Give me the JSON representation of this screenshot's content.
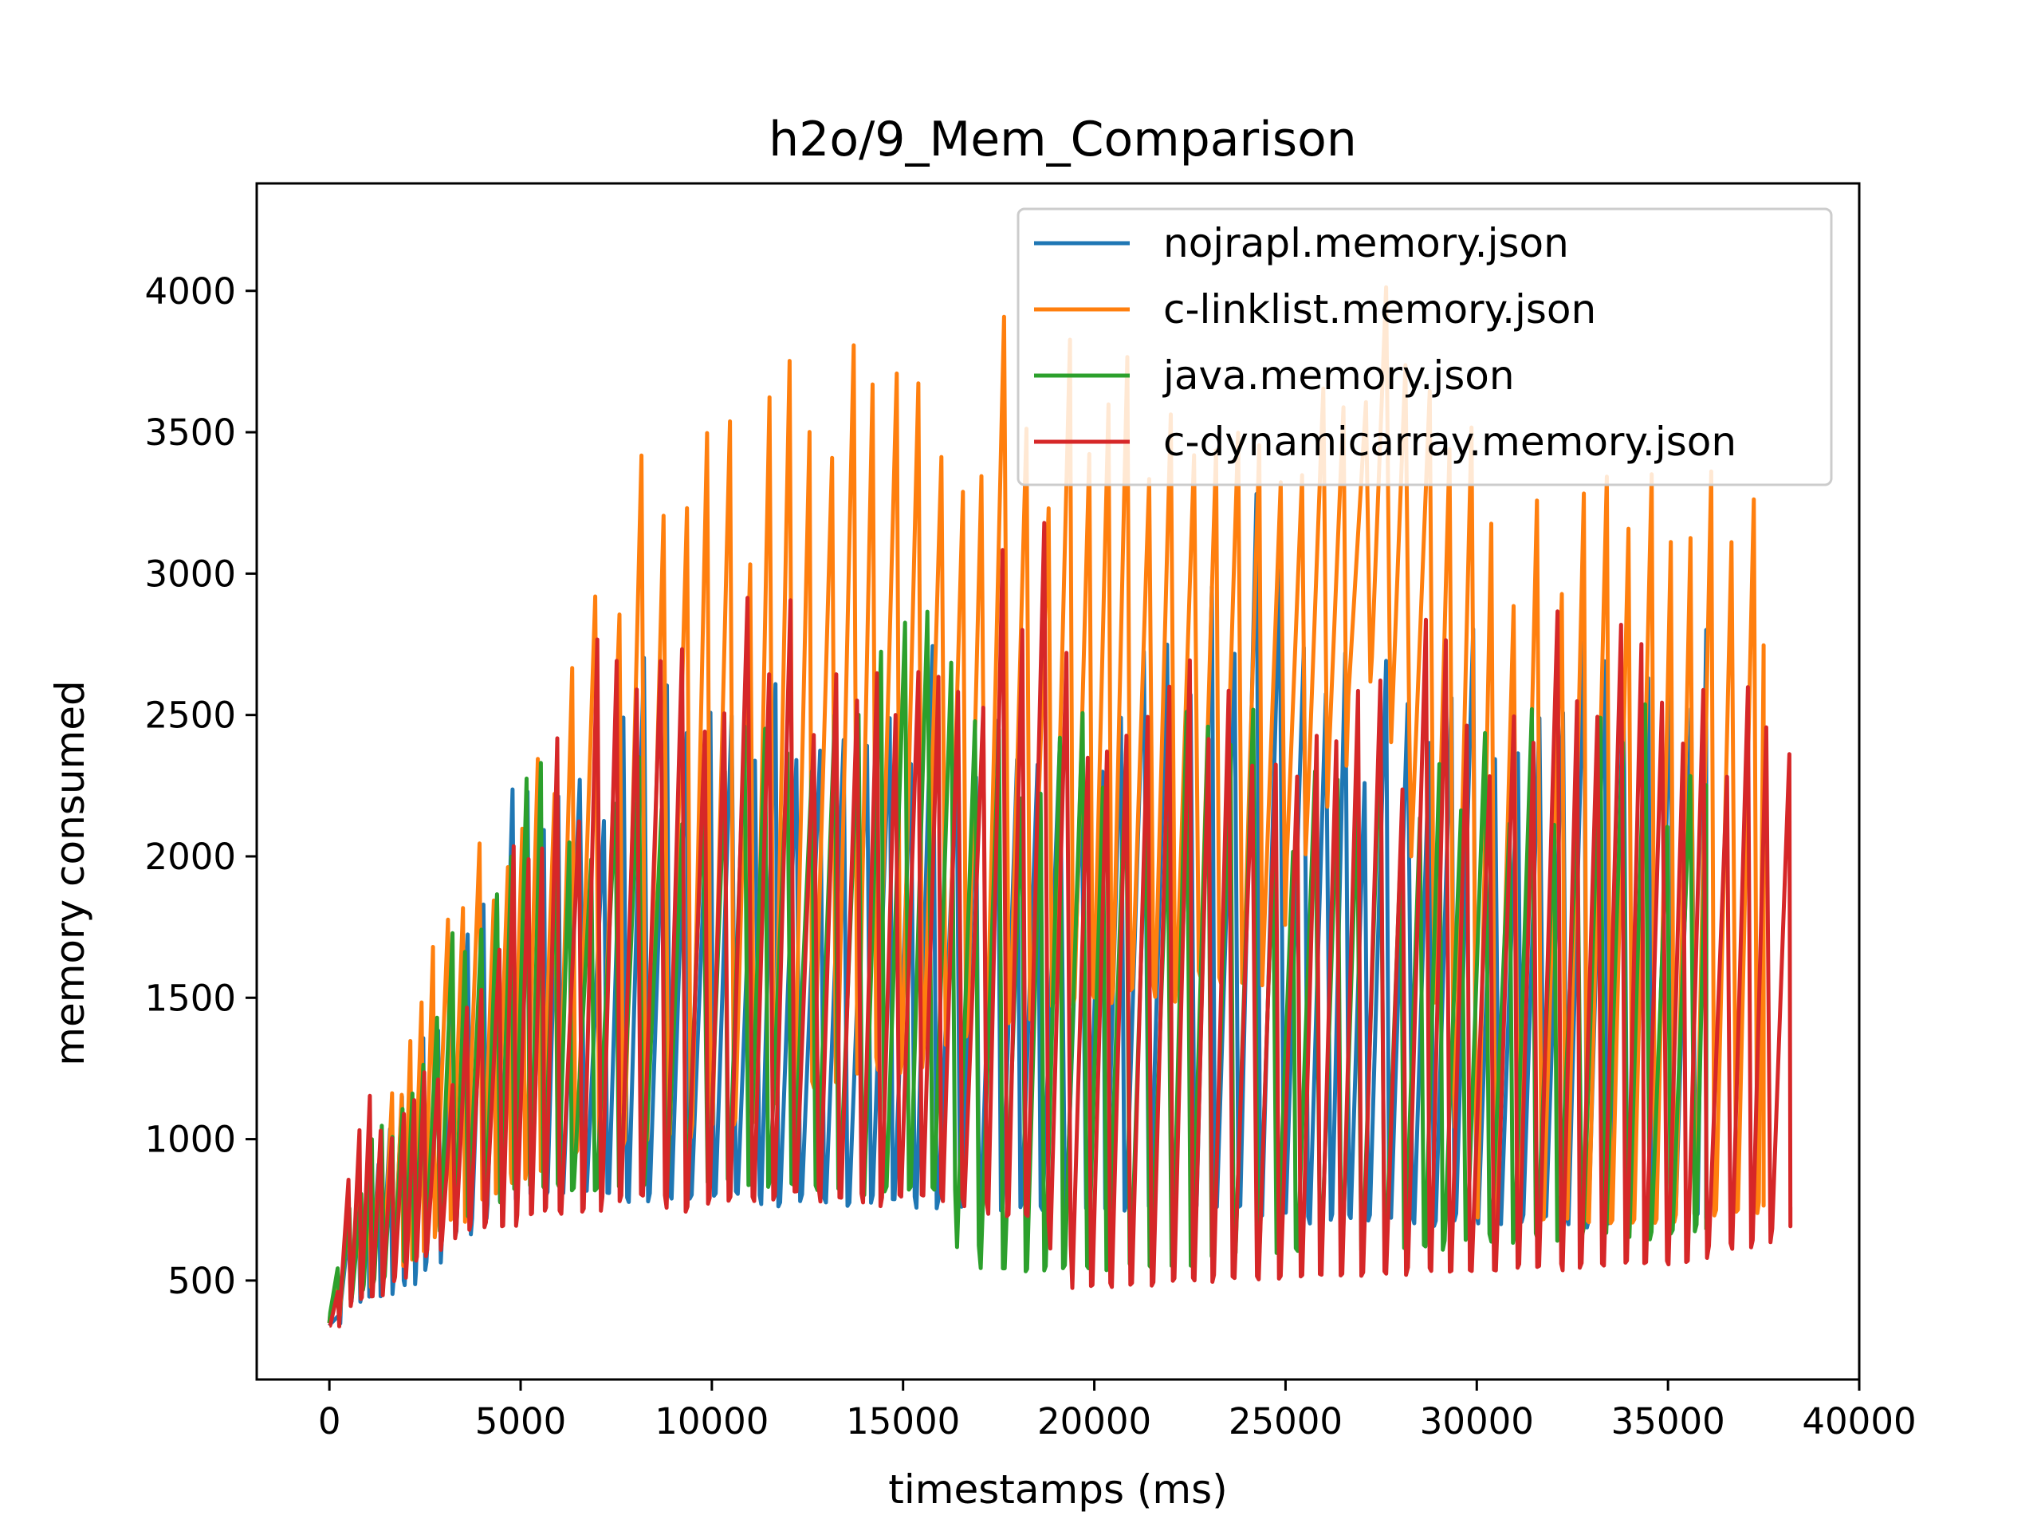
{
  "chart_data": {
    "type": "line",
    "title": "h2o/9_Mem_Comparison",
    "xlabel": "timestamps (ms)",
    "ylabel": "memory consumed",
    "xlim": [
      -1900,
      40000
    ],
    "ylim": [
      150,
      4380
    ],
    "xticks": [
      0,
      5000,
      10000,
      15000,
      20000,
      25000,
      30000,
      35000,
      40000
    ],
    "xtick_labels": [
      "0",
      "5000",
      "10000",
      "15000",
      "20000",
      "25000",
      "30000",
      "35000",
      "40000"
    ],
    "yticks": [
      500,
      1000,
      1500,
      2000,
      2500,
      3000,
      3500,
      4000
    ],
    "ytick_labels": [
      "500",
      "1000",
      "1500",
      "2000",
      "2500",
      "3000",
      "3500",
      "4000"
    ],
    "grid": false,
    "legend_position": "top-right",
    "series": [
      {
        "name": "nojrapl.memory.json",
        "color": "#1f77b4",
        "x_end": 36000,
        "envelope": [
          [
            0,
            350,
            380
          ],
          [
            300,
            420,
            700
          ],
          [
            1000,
            460,
            950
          ],
          [
            2000,
            500,
            1300
          ],
          [
            3000,
            650,
            1750
          ],
          [
            4000,
            750,
            2150
          ],
          [
            5000,
            820,
            2400
          ],
          [
            6000,
            820,
            2450
          ],
          [
            7000,
            820,
            2550
          ],
          [
            8000,
            790,
            2750
          ],
          [
            10000,
            790,
            2800
          ],
          [
            15000,
            780,
            2800
          ],
          [
            20000,
            760,
            2850
          ],
          [
            23500,
            760,
            3400
          ],
          [
            25000,
            720,
            2800
          ],
          [
            30000,
            720,
            2850
          ],
          [
            36000,
            720,
            2800
          ]
        ]
      },
      {
        "name": "c-linklist.memory.json",
        "color": "#ff7f0e",
        "x_end": 37500,
        "envelope": [
          [
            0,
            350,
            380
          ],
          [
            300,
            420,
            750
          ],
          [
            1000,
            470,
            1050
          ],
          [
            2000,
            580,
            1450
          ],
          [
            3000,
            700,
            1900
          ],
          [
            4000,
            800,
            2200
          ],
          [
            5000,
            880,
            2450
          ],
          [
            6000,
            930,
            2600
          ],
          [
            7000,
            980,
            3300
          ],
          [
            8000,
            1000,
            3500
          ],
          [
            10000,
            1050,
            3700
          ],
          [
            12000,
            1150,
            3800
          ],
          [
            15000,
            1300,
            3880
          ],
          [
            17500,
            1400,
            3920
          ],
          [
            19000,
            1500,
            3850
          ],
          [
            22000,
            1550,
            3800
          ],
          [
            24000,
            1550,
            3650
          ],
          [
            27500,
            2800,
            4100
          ],
          [
            30000,
            720,
            3450
          ],
          [
            33000,
            720,
            3450
          ],
          [
            36000,
            720,
            3400
          ],
          [
            37500,
            800,
            3350
          ]
        ]
      },
      {
        "name": "java.memory.json",
        "color": "#2ca02c",
        "x_end": 36000,
        "envelope": [
          [
            0,
            350,
            380
          ],
          [
            300,
            420,
            700
          ],
          [
            1000,
            480,
            1000
          ],
          [
            2000,
            560,
            1300
          ],
          [
            3000,
            700,
            1800
          ],
          [
            4000,
            780,
            2150
          ],
          [
            5000,
            830,
            2300
          ],
          [
            6000,
            850,
            2380
          ],
          [
            7000,
            850,
            2450
          ],
          [
            10000,
            850,
            2500
          ],
          [
            14000,
            820,
            2650
          ],
          [
            16000,
            850,
            3200
          ],
          [
            17000,
            540,
            2600
          ],
          [
            20000,
            540,
            2550
          ],
          [
            25000,
            600,
            2550
          ],
          [
            30000,
            650,
            2560
          ],
          [
            36000,
            680,
            2550
          ]
        ]
      },
      {
        "name": "c-dynamicarray.memory.json",
        "color": "#d62728",
        "x_end": 38200,
        "envelope": [
          [
            0,
            340,
            380
          ],
          [
            300,
            420,
            1000
          ],
          [
            1000,
            430,
            1200
          ],
          [
            2000,
            560,
            1200
          ],
          [
            3000,
            660,
            1400
          ],
          [
            4000,
            690,
            1900
          ],
          [
            5000,
            720,
            2300
          ],
          [
            6000,
            750,
            2600
          ],
          [
            7000,
            780,
            2850
          ],
          [
            9000,
            780,
            2950
          ],
          [
            12000,
            800,
            3000
          ],
          [
            15000,
            790,
            3000
          ],
          [
            17000,
            760,
            3050
          ],
          [
            18500,
            700,
            3300
          ],
          [
            19500,
            480,
            2850
          ],
          [
            25000,
            520,
            2900
          ],
          [
            30000,
            540,
            2850
          ],
          [
            35000,
            560,
            2900
          ],
          [
            38000,
            680,
            2950
          ],
          [
            38200,
            760,
            760
          ]
        ]
      }
    ]
  }
}
